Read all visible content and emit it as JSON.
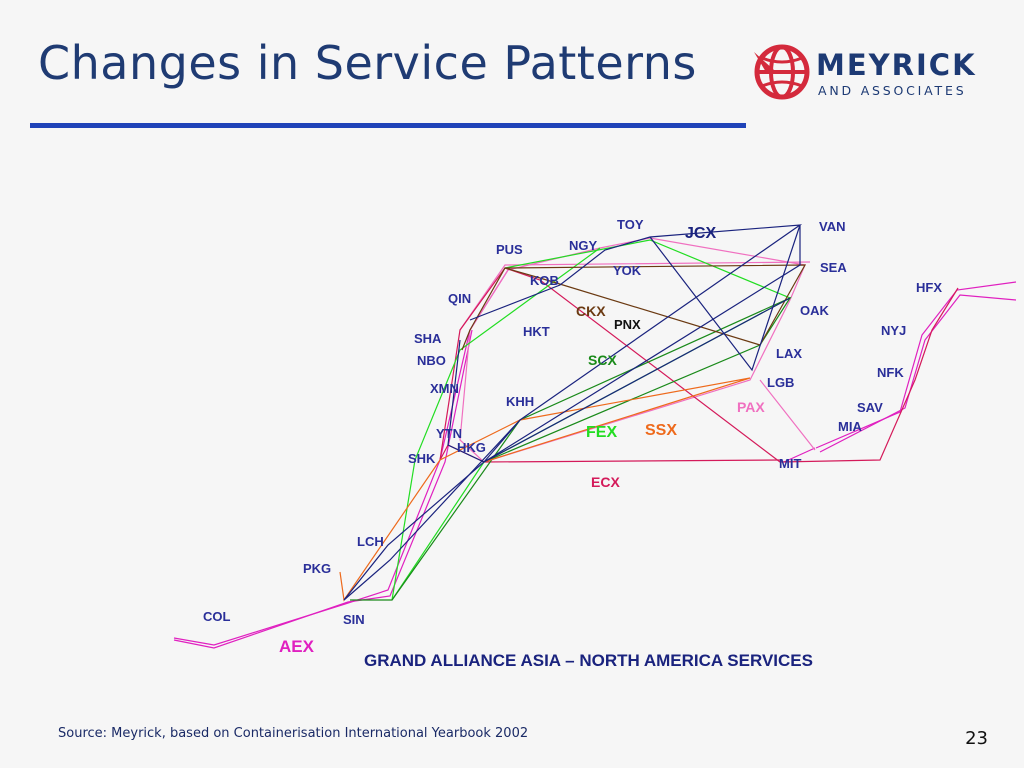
{
  "slide": {
    "title": "Changes in Service Patterns",
    "source": "Source: Meyrick, based on Containerisation International Yearbook 2002",
    "page_number": "23"
  },
  "logo": {
    "word": "MEYRICK",
    "sub": "AND ASSOCIATES",
    "color": "#1d3a74",
    "accent": "#d42a3c"
  },
  "diagram": {
    "caption": "GRAND ALLIANCE ASIA – NORTH AMERICA SERVICES",
    "ports": {
      "toy": "TOY",
      "ngy": "NGY",
      "pus": "PUS",
      "kob": "KOB",
      "yok": "YOK",
      "qin": "QIN",
      "sha": "SHA",
      "nbo": "NBO",
      "xmn": "XMN",
      "hkt": "HKT",
      "khh": "KHH",
      "ytn": "YTN",
      "hkg": "HKG",
      "shk": "SHK",
      "lch": "LCH",
      "pkg": "PKG",
      "col": "COL",
      "sin": "SIN",
      "van": "VAN",
      "sea": "SEA",
      "oak": "OAK",
      "lax": "LAX",
      "lgb": "LGB",
      "hfx": "HFX",
      "nyj": "NYJ",
      "nfk": "NFK",
      "sav": "SAV",
      "mia": "MIA",
      "mit": "MIT",
      "pnx": "PNX"
    },
    "services": {
      "jcx": {
        "label": "JCX",
        "color": "#1a237e"
      },
      "ckx": {
        "label": "CKX",
        "color": "#6b3a12"
      },
      "scx": {
        "label": "SCX",
        "color": "#1a8a1a"
      },
      "fex": {
        "label": "FEX",
        "color": "#22dd22"
      },
      "ssx": {
        "label": "SSX",
        "color": "#ee6a1c"
      },
      "pax": {
        "label": "PAX",
        "color": "#f070c0"
      },
      "ecx": {
        "label": "ECX",
        "color": "#d41a5a"
      },
      "aex": {
        "label": "AEX",
        "color": "#e020c0"
      }
    },
    "port_label_color": "#2a2f99"
  }
}
